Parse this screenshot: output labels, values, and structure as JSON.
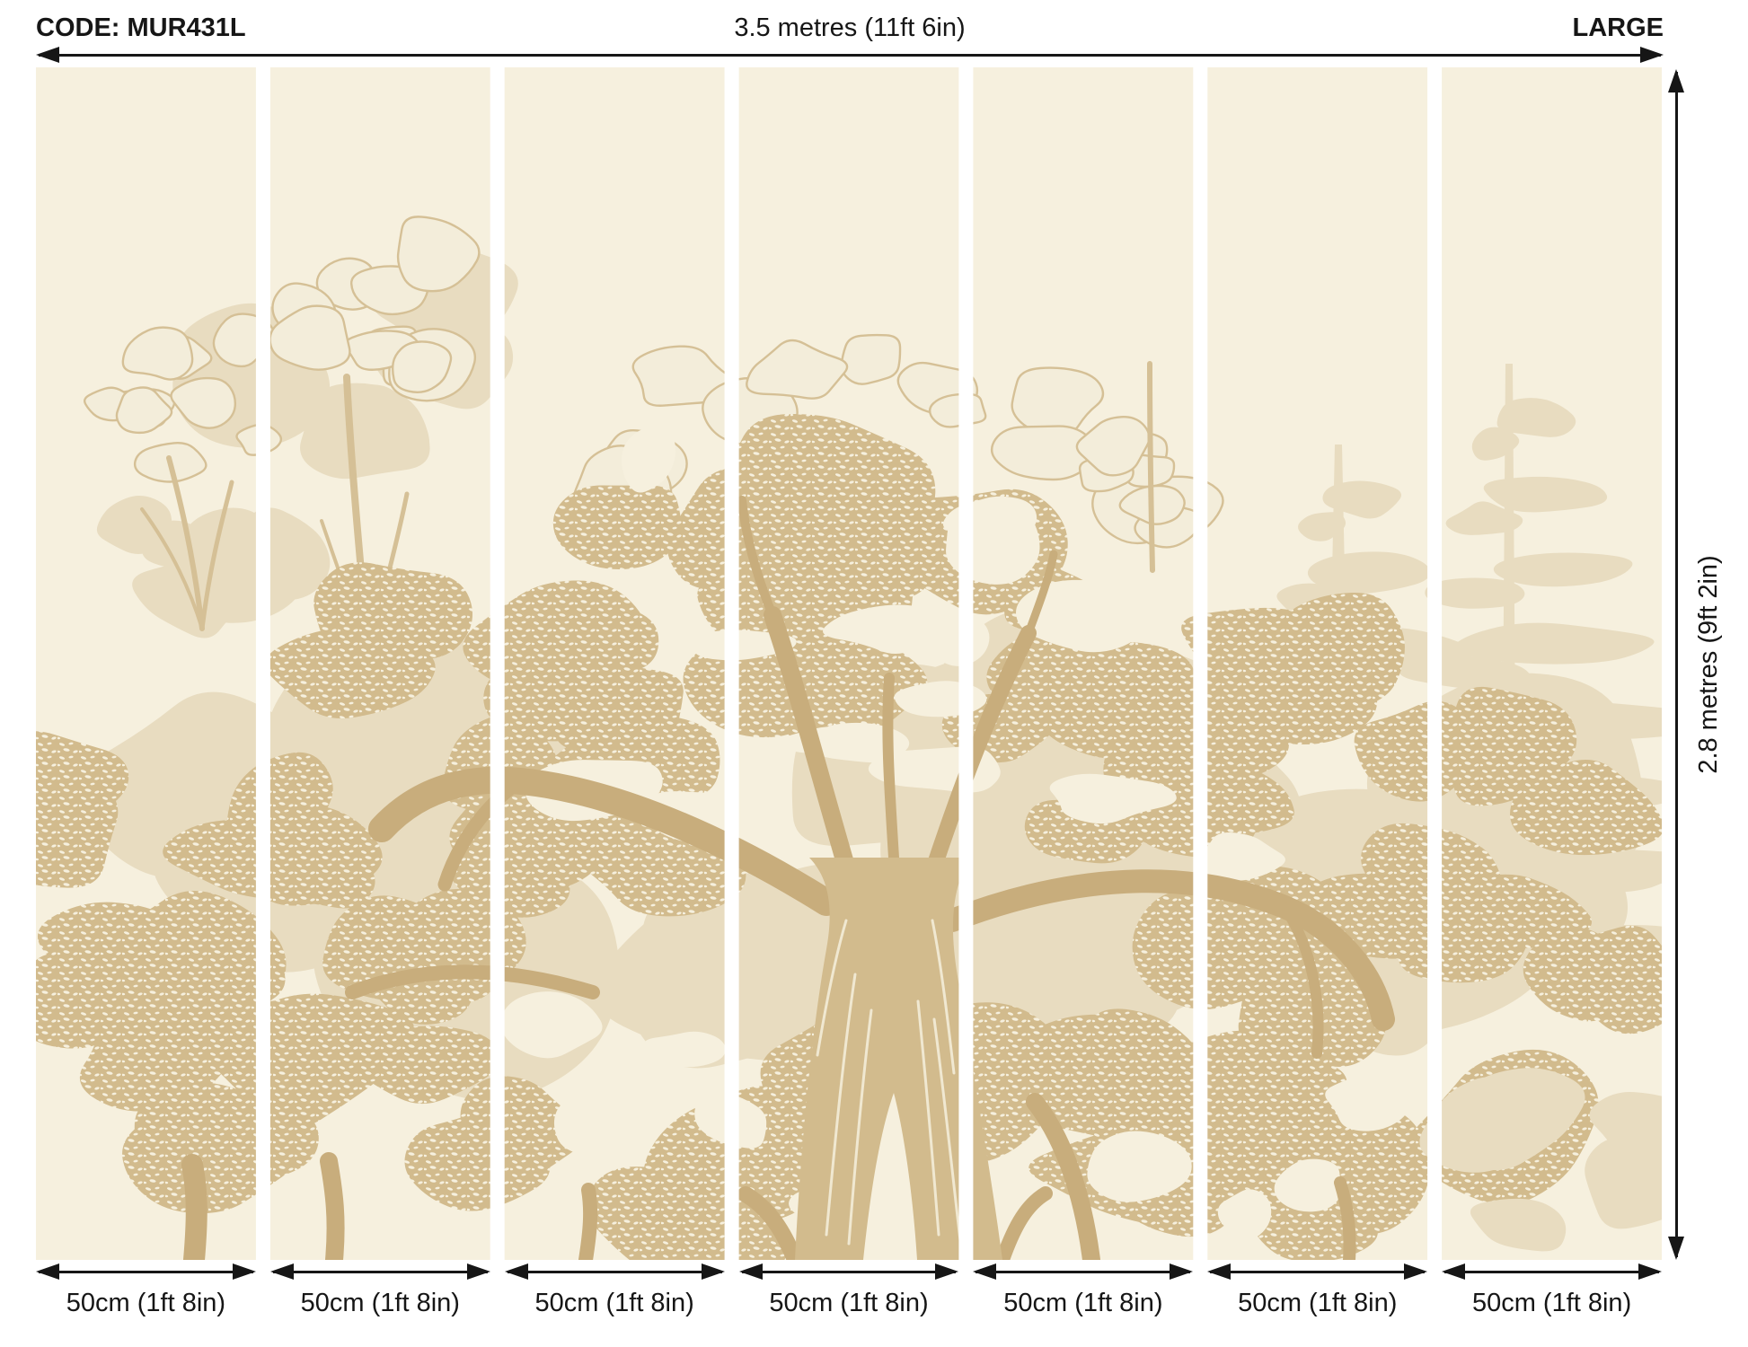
{
  "header": {
    "code": "CODE: MUR431L",
    "width_label": "3.5 metres (11ft 6in)",
    "size_label": "LARGE"
  },
  "side": {
    "height_label": "2.8 metres (9ft 2in)"
  },
  "bottom": {
    "labels": [
      "50cm (1ft 8in)",
      "50cm (1ft 8in)",
      "50cm (1ft 8in)",
      "50cm (1ft 8in)",
      "50cm (1ft 8in)",
      "50cm (1ft 8in)",
      "50cm (1ft 8in)"
    ]
  },
  "mural": {
    "panel_count": 7,
    "artwork": "Vintage etched sepia woodland trees mural split into 7 drops"
  },
  "colors": {
    "page_bg": "#ffffff",
    "ink": "#161616",
    "cream": "#f6f0de",
    "cream_hi": "#f3edda",
    "tan_faint": "#e8dcc0",
    "tan_out": "#d5c096",
    "tan_mid": "#d2bb8d",
    "tan_deep": "#c8ad7c",
    "gap": "#ffffff"
  }
}
